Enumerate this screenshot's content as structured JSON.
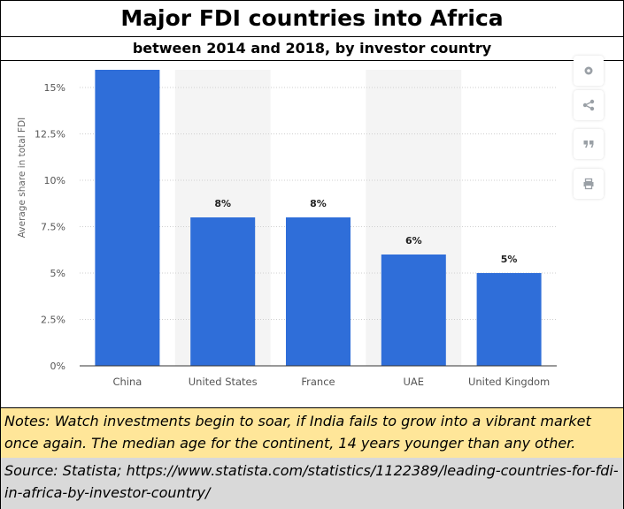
{
  "header": {
    "title": "Major FDI countries  into Africa",
    "subtitle": "between 2014 and 2018, by investor country"
  },
  "chart_data": {
    "type": "bar",
    "categories": [
      "China",
      "United States",
      "France",
      "UAE",
      "United Kingdom"
    ],
    "values": [
      16,
      8,
      8,
      6,
      5
    ],
    "data_labels": [
      "",
      "8%",
      "8%",
      "6%",
      "5%"
    ],
    "ylabel": "Average share in total FDI",
    "xlabel": "",
    "ylim": [
      0,
      15
    ],
    "yticks": [
      "0%",
      "2.5%",
      "5%",
      "7.5%",
      "10%",
      "12.5%",
      "15%"
    ],
    "bar_color": "#2f6ed9",
    "grid": true,
    "alternating_column_shading": true
  },
  "toolbar": {
    "icons": [
      "settings-icon",
      "share-icon",
      "quote-icon",
      "print-icon"
    ]
  },
  "notes": {
    "text": "Notes:  Watch investments begin to soar, if India fails to grow into a vibrant market once again. The median age for the continent, 14 years younger than any other."
  },
  "source": {
    "text": "Source: Statista; https://www.statista.com/statistics/1122389/leading-countries-for-fdi-in-africa-by-investor-country/"
  },
  "colors": {
    "notes_background": "#ffe699",
    "source_background": "#d9d9d9"
  }
}
